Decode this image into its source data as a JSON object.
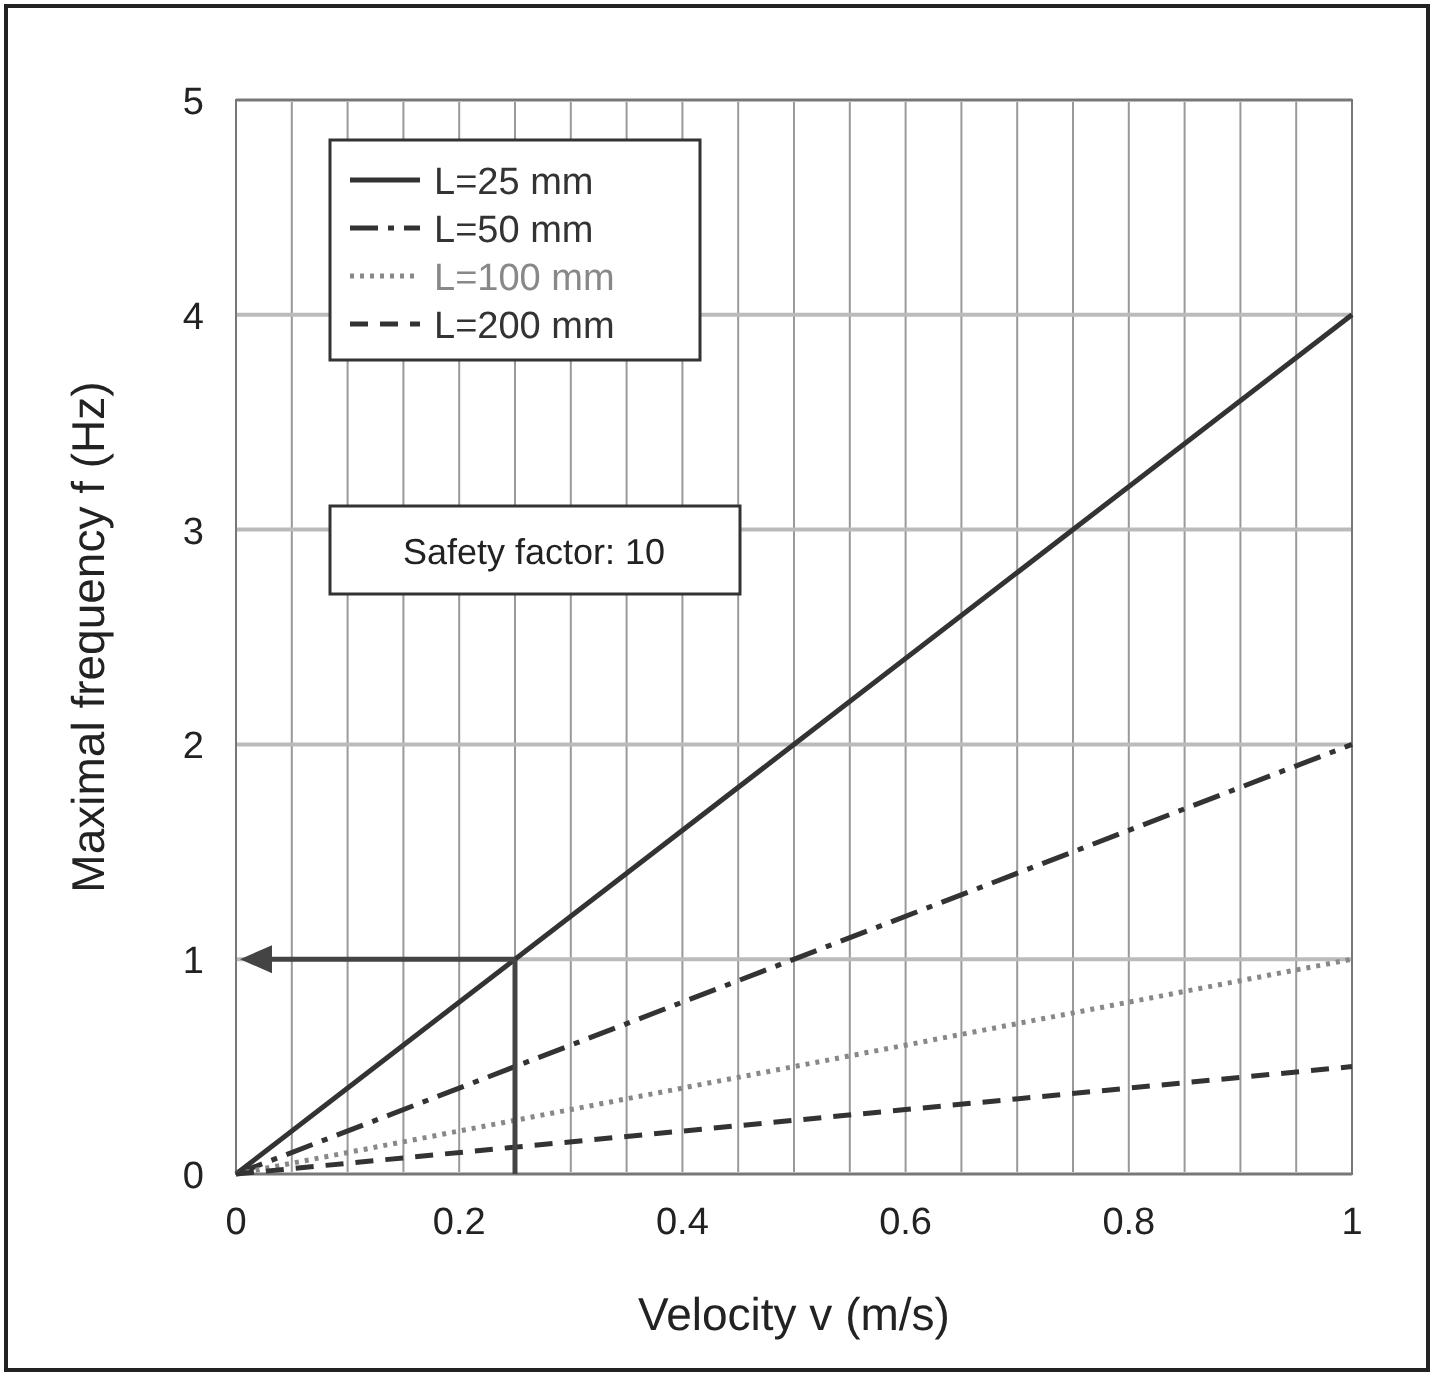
{
  "chart_data": {
    "type": "line",
    "xlabel": "Velocity v (m/s)",
    "ylabel": "Maximal frequency f (Hz)",
    "x": [
      0,
      1
    ],
    "series": [
      {
        "name": "L=25 mm",
        "color": "#333333",
        "values": [
          0,
          4
        ],
        "line_style": "solid"
      },
      {
        "name": "L=50 mm",
        "color": "#333333",
        "values": [
          0,
          2
        ],
        "line_style": "dashdot"
      },
      {
        "name": "L=100 mm",
        "color": "#888888",
        "values": [
          0,
          1
        ],
        "line_style": "dotted"
      },
      {
        "name": "L=200 mm",
        "color": "#333333",
        "values": [
          0,
          0.5
        ],
        "line_style": "dashed"
      }
    ],
    "xlim": [
      0,
      1
    ],
    "xticks": [
      0,
      {
        "value": 0.05,
        "label": null
      },
      {
        "value": 0.1,
        "label": null
      },
      {
        "value": 0.15,
        "label": null
      },
      0.2,
      {
        "value": 0.25,
        "label": null
      },
      {
        "value": 0.3,
        "label": null
      },
      {
        "value": 0.35,
        "label": null
      },
      0.4,
      {
        "value": 0.45,
        "label": null
      },
      {
        "value": 0.5,
        "label": null
      },
      {
        "value": 0.55,
        "label": null
      },
      0.6,
      {
        "value": 0.65,
        "label": null
      },
      {
        "value": 0.7,
        "label": null
      },
      {
        "value": 0.75,
        "label": null
      },
      0.8,
      {
        "value": 0.85,
        "label": null
      },
      {
        "value": 0.9,
        "label": null
      },
      {
        "value": 0.95,
        "label": null
      },
      1
    ],
    "ylim": [
      0,
      5
    ],
    "yticks": [
      0,
      1,
      2,
      3,
      4,
      5
    ],
    "grid": true,
    "legend": "top left",
    "marker": "none",
    "ref_lines": [
      {
        "axis": "x",
        "value": 0.25,
        "color": "#444444"
      },
      {
        "axis": "y",
        "value": 1,
        "color": "#444444"
      }
    ],
    "annotations": [
      "Safety factor: 10"
    ]
  }
}
